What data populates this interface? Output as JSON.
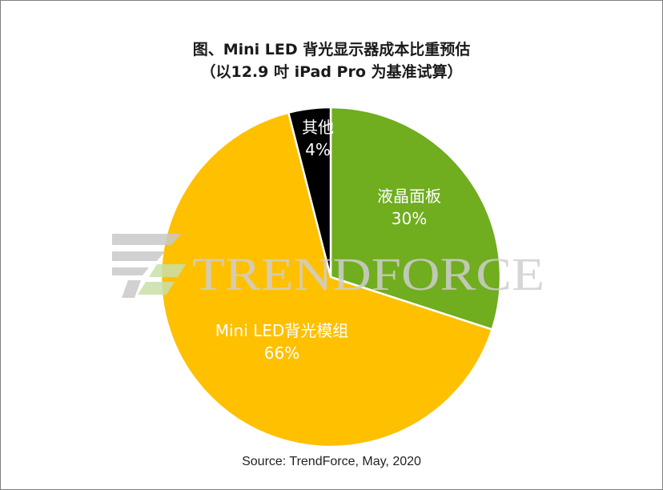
{
  "title": {
    "line1": "图、Mini LED 背光显示器成本比重预估",
    "line2": "（以12.9 吋 iPad Pro 为基准试算）"
  },
  "source": "Source: TrendForce, May, 2020",
  "watermark": {
    "text": "TRENDFORCE"
  },
  "chart_data": {
    "type": "pie",
    "title": "图、Mini LED 背光显示器成本比重预估（以12.9 吋 iPad Pro 为基准试算）",
    "slices": [
      {
        "label": "液晶面板",
        "value": 30,
        "value_label": "30%",
        "color": "#70ad1f",
        "label_color": "#ffffff"
      },
      {
        "label": "Mini LED背光模组",
        "value": 66,
        "value_label": "66%",
        "color": "#ffc000",
        "label_color": "#ffffff"
      },
      {
        "label": "其他",
        "value": 4,
        "value_label": "4%",
        "color": "#000000",
        "label_color": "#ffffff"
      }
    ],
    "start": "12 o'clock",
    "direction": "clockwise",
    "legend": "none"
  }
}
